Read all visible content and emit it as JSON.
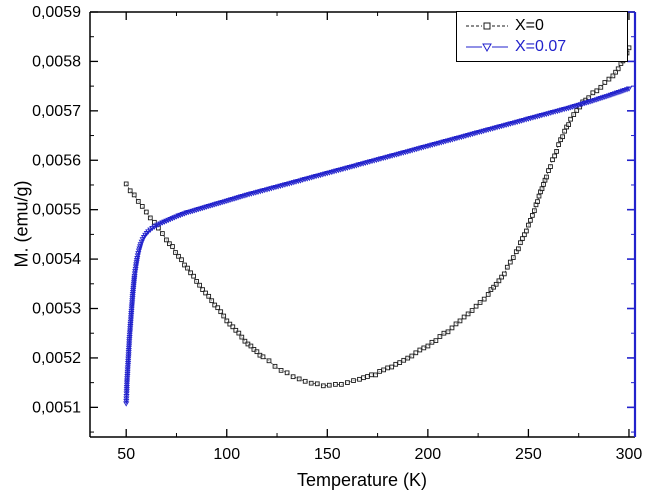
{
  "figure": {
    "x_axis_label": "Temperature (K)",
    "y_axis_label": "M. (emu/g)"
  },
  "chart_data": {
    "type": "scatter",
    "title": "",
    "xlabel": "Temperature (K)",
    "ylabel": "M. (emu/g)",
    "xlim": [
      32,
      303
    ],
    "ylim": [
      0.00504,
      0.0059
    ],
    "grid": false,
    "legend_position": "top-right",
    "x_ticks": [
      50,
      100,
      150,
      200,
      250,
      300
    ],
    "x_tick_labels": [
      "50",
      "100",
      "150",
      "200",
      "250",
      "300"
    ],
    "x_minor_ticks": [
      75,
      125,
      175,
      225,
      275
    ],
    "y_ticks": [
      0.0051,
      0.0052,
      0.0053,
      0.0054,
      0.0055,
      0.0056,
      0.0057,
      0.0058,
      0.0059
    ],
    "y_tick_labels": [
      "0,0051",
      "0,0052",
      "0,0053",
      "0,0054",
      "0,0055",
      "0,0056",
      "0,0057",
      "0,0058",
      "0,0059"
    ],
    "y_minor_ticks": [
      0.00505,
      0.00515,
      0.00525,
      0.00535,
      0.00545,
      0.00555,
      0.00565,
      0.00575,
      0.00585
    ],
    "colors": {
      "axis": "#000000",
      "right_axis": "#2222cc"
    },
    "series": [
      {
        "name": "X=0",
        "color": "#1a1a1a",
        "marker": "square",
        "line": "dash",
        "points": [
          [
            50,
            0.00555
          ],
          [
            52,
            0.00554
          ],
          [
            54,
            0.005528
          ],
          [
            56,
            0.005517
          ],
          [
            58,
            0.005506
          ],
          [
            60,
            0.005495
          ],
          [
            62,
            0.005484
          ],
          [
            64,
            0.005473
          ],
          [
            66,
            0.005462
          ],
          [
            68,
            0.005452
          ],
          [
            70,
            0.005441
          ],
          [
            73,
            0.005424
          ],
          [
            76,
            0.005407
          ],
          [
            79,
            0.00539
          ],
          [
            82,
            0.005373
          ],
          [
            85,
            0.005356
          ],
          [
            88,
            0.005339
          ],
          [
            91,
            0.005323
          ],
          [
            94,
            0.005307
          ],
          [
            97,
            0.005292
          ],
          [
            100,
            0.005277
          ],
          [
            103,
            0.005262
          ],
          [
            106,
            0.005249
          ],
          [
            109,
            0.005236
          ],
          [
            112,
            0.005224
          ],
          [
            115,
            0.005213
          ],
          [
            118,
            0.005202
          ],
          [
            121,
            0.005193
          ],
          [
            124,
            0.005184
          ],
          [
            127,
            0.005176
          ],
          [
            130,
            0.005169
          ],
          [
            133,
            0.005162
          ],
          [
            136,
            0.005156
          ],
          [
            139,
            0.005151
          ],
          [
            142,
            0.005148
          ],
          [
            145,
            0.005146
          ],
          [
            148,
            0.005145
          ],
          [
            151,
            0.005145
          ],
          [
            154,
            0.005146
          ],
          [
            157,
            0.005148
          ],
          [
            160,
            0.00515
          ],
          [
            163,
            0.005153
          ],
          [
            166,
            0.005156
          ],
          [
            170,
            0.005161
          ],
          [
            174,
            0.005167
          ],
          [
            178,
            0.005174
          ],
          [
            182,
            0.005182
          ],
          [
            186,
            0.00519
          ],
          [
            190,
            0.005199
          ],
          [
            194,
            0.005209
          ],
          [
            198,
            0.005219
          ],
          [
            202,
            0.00523
          ],
          [
            206,
            0.005242
          ],
          [
            210,
            0.005254
          ],
          [
            214,
            0.005267
          ],
          [
            218,
            0.005281
          ],
          [
            222,
            0.005296
          ],
          [
            226,
            0.005312
          ],
          [
            230,
            0.00533
          ],
          [
            234,
            0.00535
          ],
          [
            238,
            0.005372
          ],
          [
            241,
            0.005392
          ],
          [
            244,
            0.005414
          ],
          [
            247,
            0.00544
          ],
          [
            250,
            0.005468
          ],
          [
            253,
            0.0055
          ],
          [
            256,
            0.005534
          ],
          [
            259,
            0.005568
          ],
          [
            262,
            0.0056
          ],
          [
            265,
            0.00563
          ],
          [
            268,
            0.005658
          ],
          [
            271,
            0.005682
          ],
          [
            274,
            0.005702
          ],
          [
            277,
            0.005716
          ],
          [
            280,
            0.005728
          ],
          [
            284,
            0.005742
          ],
          [
            288,
            0.005756
          ],
          [
            292,
            0.005772
          ],
          [
            296,
            0.005794
          ],
          [
            298,
            0.00581
          ],
          [
            300,
            0.005828
          ]
        ]
      },
      {
        "name": "X=0.07",
        "color": "#2222cc",
        "marker": "triangle-down",
        "line": "solid",
        "points": [
          [
            50,
            0.005108
          ],
          [
            50.2,
            0.005128
          ],
          [
            50.4,
            0.00515
          ],
          [
            50.7,
            0.005172
          ],
          [
            51,
            0.005194
          ],
          [
            51.3,
            0.005216
          ],
          [
            51.6,
            0.005238
          ],
          [
            52,
            0.00526
          ],
          [
            52.4,
            0.005282
          ],
          [
            52.8,
            0.005304
          ],
          [
            53.2,
            0.005325
          ],
          [
            53.7,
            0.005346
          ],
          [
            54.2,
            0.005366
          ],
          [
            54.8,
            0.005385
          ],
          [
            55.5,
            0.005402
          ],
          [
            56.3,
            0.005417
          ],
          [
            57.2,
            0.00543
          ],
          [
            58.2,
            0.00544
          ],
          [
            59.5,
            0.005449
          ],
          [
            61,
            0.005456
          ],
          [
            63,
            0.005463
          ],
          [
            65,
            0.005468
          ],
          [
            68,
            0.005474
          ],
          [
            72,
            0.005481
          ],
          [
            76,
            0.005488
          ],
          [
            80,
            0.005494
          ],
          [
            85,
            0.0055
          ],
          [
            90,
            0.005506
          ],
          [
            95,
            0.005512
          ],
          [
            100,
            0.005518
          ],
          [
            110,
            0.00553
          ],
          [
            120,
            0.005541
          ],
          [
            130,
            0.005552
          ],
          [
            140,
            0.005563
          ],
          [
            150,
            0.005574
          ],
          [
            160,
            0.005585
          ],
          [
            170,
            0.005596
          ],
          [
            180,
            0.005607
          ],
          [
            190,
            0.005618
          ],
          [
            200,
            0.005629
          ],
          [
            210,
            0.00564
          ],
          [
            220,
            0.005651
          ],
          [
            230,
            0.005662
          ],
          [
            240,
            0.005673
          ],
          [
            250,
            0.005684
          ],
          [
            260,
            0.005695
          ],
          [
            270,
            0.005706
          ],
          [
            280,
            0.005718
          ],
          [
            290,
            0.005731
          ],
          [
            300,
            0.005745
          ]
        ]
      }
    ]
  }
}
